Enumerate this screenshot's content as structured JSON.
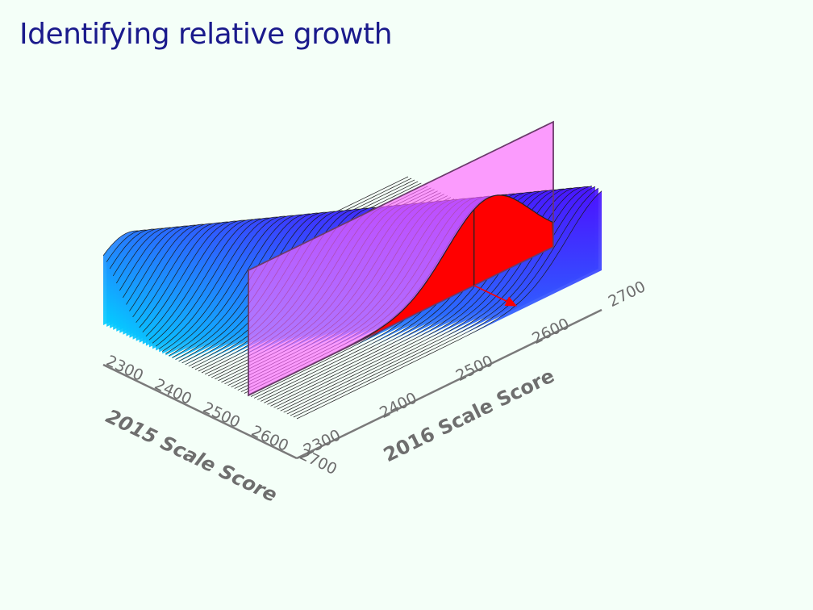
{
  "slide": {
    "title": "Identifying relative growth"
  },
  "chart_data": {
    "type": "surface",
    "x_axis": {
      "label": "2015 Scale Score",
      "ticks": [
        "2300",
        "2400",
        "2500",
        "2600",
        "2700"
      ],
      "range": [
        2300,
        2700
      ]
    },
    "y_axis": {
      "label": "2016 Scale Score",
      "ticks": [
        "2300",
        "2400",
        "2500",
        "2600",
        "2700"
      ],
      "range": [
        2300,
        2700
      ]
    },
    "surface": {
      "description_kind": "conditional density of 2016 score given 2015 score",
      "mean_2016_at_2300": 2330,
      "mean_2016_slope": 0.95,
      "sd_2016": 55,
      "grid_lines_along_2016_axis": 60,
      "color_low": "#00d8ff",
      "color_high": "#4b12ff",
      "line_color": "#1a1a1a"
    },
    "slice": {
      "at_2015_score": 2600,
      "plane_color": "#ff66ff",
      "plane_opacity": 0.65,
      "curve_fill": "#ff0000"
    },
    "percentile_marker": {
      "at_2016_score": 2596,
      "arrow_color": "#ff0000"
    },
    "axis_color": "#7a7a7a"
  }
}
